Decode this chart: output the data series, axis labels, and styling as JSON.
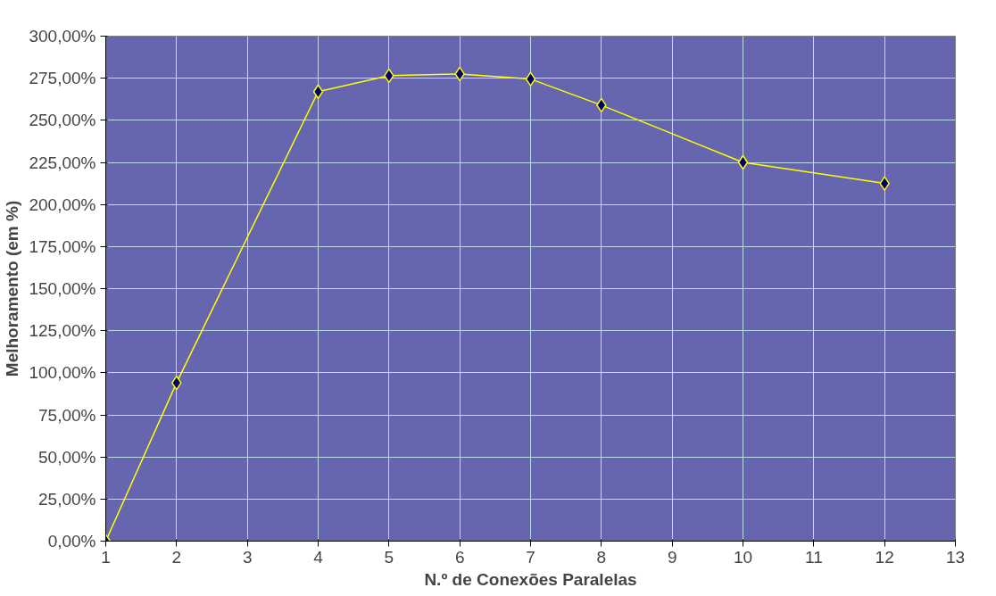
{
  "chart_data": {
    "type": "line",
    "xlabel": "N.º de Conexões Paralelas",
    "ylabel": "Melhoramento (em %)",
    "x": [
      1,
      2,
      4,
      5,
      6,
      7,
      8,
      10,
      12
    ],
    "series": [
      {
        "color": "#ffff00",
        "values": [
          0,
          94,
          267,
          276.5,
          277.5,
          274.5,
          259,
          225,
          212.5
        ]
      }
    ],
    "xlim": [
      1,
      13
    ],
    "xticks": [
      1,
      2,
      3,
      4,
      5,
      6,
      7,
      8,
      9,
      10,
      11,
      12,
      13
    ],
    "ylim": [
      0,
      300
    ],
    "yticks": [
      {
        "value": 0,
        "label": "0,00%"
      },
      {
        "value": 25,
        "label": "25,00%"
      },
      {
        "value": 50,
        "label": "50,00%"
      },
      {
        "value": 75,
        "label": "75,00%"
      },
      {
        "value": 100,
        "label": "100,00%"
      },
      {
        "value": 125,
        "label": "125,00%"
      },
      {
        "value": 150,
        "label": "150,00%"
      },
      {
        "value": 175,
        "label": "175,00%"
      },
      {
        "value": 200,
        "label": "200,00%"
      },
      {
        "value": 225,
        "label": "225,00%"
      },
      {
        "value": 250,
        "label": "250,00%"
      },
      {
        "value": 275,
        "label": "275,00%"
      },
      {
        "value": 300,
        "label": "300,00%"
      }
    ],
    "grid": true,
    "marker": "diamond",
    "line_style": "solid"
  }
}
